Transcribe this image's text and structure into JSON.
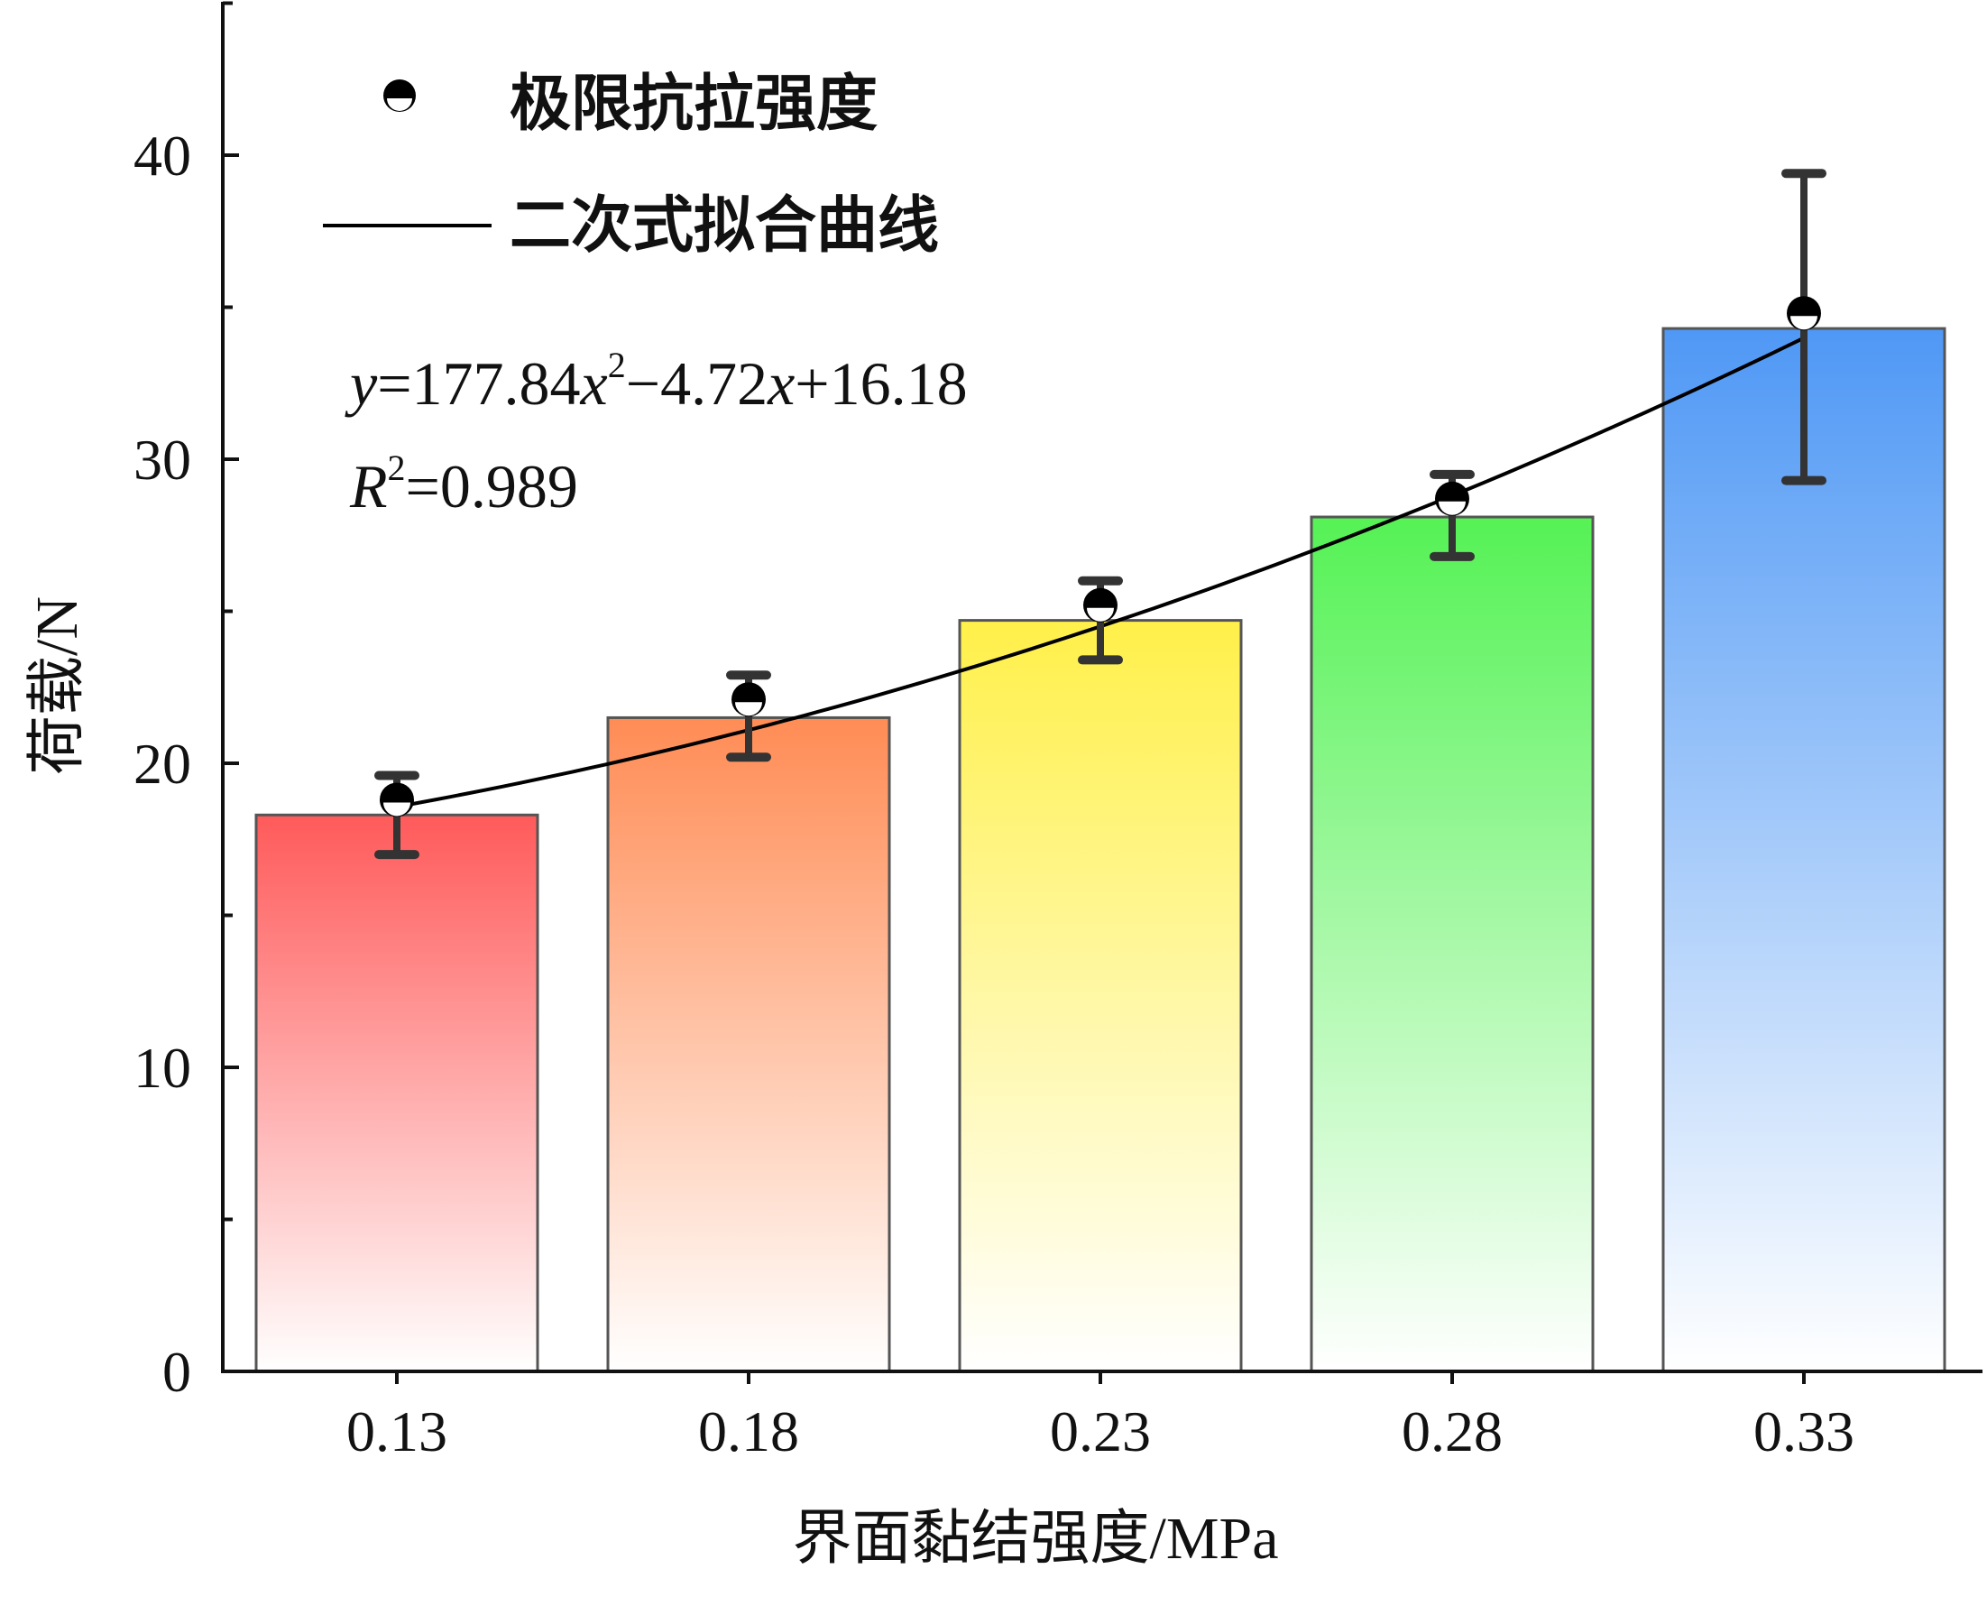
{
  "chart_data": {
    "type": "bar",
    "xlabel": "界面黏结强度/MPa",
    "ylabel": "荷载/N",
    "categories": [
      "0.13",
      "0.18",
      "0.23",
      "0.28",
      "0.33"
    ],
    "x": [
      0.13,
      0.18,
      0.23,
      0.28,
      0.33
    ],
    "ylim": [
      0,
      45
    ],
    "yticks": [
      0,
      10,
      20,
      30,
      40
    ],
    "bars": {
      "values": [
        18.3,
        21.5,
        24.7,
        28.1,
        34.3
      ],
      "colors": [
        "#ff5a5a",
        "#ff8c55",
        "#fff04a",
        "#55f255",
        "#4f98f5"
      ]
    },
    "series": [
      {
        "name": "极限抗拉强度",
        "type": "scatter",
        "values": [
          18.8,
          22.1,
          25.2,
          28.7,
          34.8
        ],
        "error_low": [
          17.0,
          20.2,
          23.4,
          26.8,
          29.3
        ],
        "error_high": [
          19.6,
          22.9,
          26.0,
          29.5,
          39.4
        ]
      },
      {
        "name": "二次式拟合曲线",
        "type": "line",
        "equation": {
          "a": 177.84,
          "b": -4.72,
          "c": 16.18
        }
      }
    ],
    "annotation": {
      "eq_y": "y",
      "eq_p1": "=177.84",
      "eq_x1": "x",
      "eq_sup": "2",
      "eq_p2": "−4.72",
      "eq_x2": "x",
      "eq_p3": "+16.18",
      "r2_R": "R",
      "r2_sup": "2",
      "r2_val": "=0.989"
    },
    "legend_position": "top-left",
    "grid": false
  }
}
